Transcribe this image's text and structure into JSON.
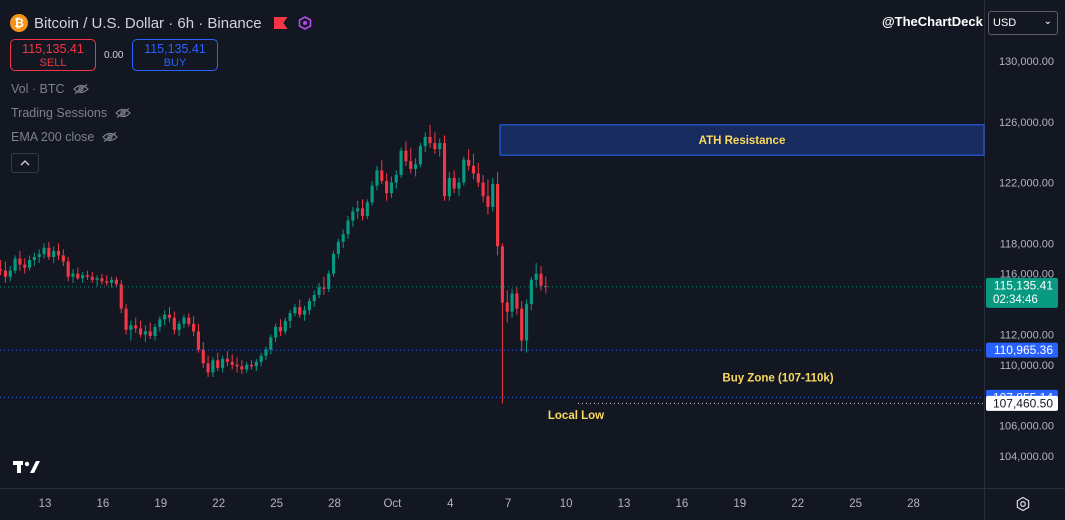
{
  "header": {
    "title": "Bitcoin / U.S. Dollar · 6h · Binance",
    "coin_symbol": "₿",
    "handle": "@TheChartDeck",
    "currency": "USD"
  },
  "trade": {
    "sell_price": "115,135.41",
    "sell_label": "SELL",
    "spread": "0.00",
    "buy_price": "115,135.41",
    "buy_label": "BUY"
  },
  "indicators": [
    "Vol · BTC",
    "Trading Sessions",
    "EMA 200 close"
  ],
  "colors": {
    "up": "#089981",
    "down": "#f23645",
    "bg": "#131722",
    "zone": "#2962ff",
    "annot": "#f9d95f"
  },
  "chart_data": {
    "type": "candlestick",
    "title": "Bitcoin / U.S. Dollar · 6h · Binance",
    "ylim": [
      102800,
      131500
    ],
    "y_ticks": [
      "130,000.00",
      "126,000.00",
      "122,000.00",
      "118,000.00",
      "116,000.00",
      "112,000.00",
      "110,000.00",
      "106,000.00",
      "104,000.00"
    ],
    "x_ticks": [
      "13",
      "16",
      "19",
      "22",
      "25",
      "28",
      "Oct",
      "4",
      "7",
      "10",
      "13",
      "16",
      "19",
      "22",
      "25",
      "28"
    ],
    "x_domain": {
      "first_tick_day": "Sep 13",
      "candles_per_day": 4
    },
    "price_levels": [
      {
        "label": "115,135.41",
        "sublabel": "02:34:46",
        "value": 115135.41,
        "style": "last"
      },
      {
        "label": "110,965.36",
        "value": 110965.36,
        "style": "blue"
      },
      {
        "label": "107,855.14",
        "value": 107855.14,
        "style": "blue"
      },
      {
        "label": "107,460.50",
        "value": 107460.5,
        "style": "white"
      }
    ],
    "annotations": [
      {
        "text": "ATH Resistance",
        "kind": "zone",
        "from_candle": 2,
        "y_range": [
          123800,
          125800
        ]
      },
      {
        "text": "Buy Zone (107-110k)",
        "kind": "label",
        "x_candle": 60,
        "y": 109100
      },
      {
        "text": "Local Low",
        "kind": "label",
        "x_candle": 0,
        "y": 106700
      }
    ],
    "candles": [
      [
        114000,
        114600,
        113400,
        114100
      ],
      [
        114100,
        114800,
        113500,
        113900
      ],
      [
        113900,
        114700,
        113600,
        114600
      ],
      [
        114600,
        115100,
        114200,
        114900
      ],
      [
        114900,
        115400,
        114600,
        115300
      ],
      [
        115300,
        115700,
        114700,
        115000
      ],
      [
        115000,
        115500,
        114600,
        115200
      ],
      [
        115200,
        115900,
        115000,
        115600
      ],
      [
        115600,
        116200,
        115300,
        115900
      ],
      [
        115900,
        116100,
        115200,
        115400
      ],
      [
        115400,
        115800,
        114900,
        115600
      ],
      [
        115600,
        116000,
        115200,
        115500
      ],
      [
        115500,
        116000,
        115100,
        115800
      ],
      [
        115800,
        116300,
        115400,
        115900
      ],
      [
        115900,
        116200,
        115300,
        115500
      ],
      [
        115500,
        115900,
        114900,
        115100
      ],
      [
        115100,
        115700,
        114900,
        115600
      ],
      [
        115600,
        116100,
        115300,
        116000
      ],
      [
        116000,
        116700,
        115700,
        116400
      ],
      [
        116400,
        116900,
        115800,
        116200
      ],
      [
        116200,
        116700,
        115600,
        115800
      ],
      [
        115800,
        116300,
        115400,
        116000
      ],
      [
        116000,
        116500,
        115300,
        115500
      ],
      [
        115500,
        116000,
        114600,
        114900
      ],
      [
        114900,
        115600,
        114600,
        115400
      ],
      [
        115400,
        116400,
        115200,
        116300
      ],
      [
        116300,
        116900,
        115900,
        116200
      ],
      [
        116200,
        116800,
        115400,
        115800
      ],
      [
        115800,
        116500,
        115500,
        116200
      ],
      [
        116200,
        117200,
        116000,
        117000
      ],
      [
        117000,
        117500,
        116200,
        116600
      ],
      [
        116600,
        117000,
        116000,
        116400
      ],
      [
        116400,
        117200,
        116200,
        116900
      ],
      [
        116900,
        117400,
        116500,
        117100
      ],
      [
        117100,
        117600,
        116700,
        117300
      ],
      [
        117300,
        118000,
        117000,
        117700
      ],
      [
        117700,
        118100,
        116900,
        117100
      ],
      [
        117100,
        117800,
        116700,
        117500
      ],
      [
        117500,
        118000,
        116900,
        117200
      ],
      [
        117200,
        117600,
        116500,
        116800
      ],
      [
        116800,
        117100,
        115500,
        115800
      ],
      [
        115800,
        116300,
        115400,
        116000
      ],
      [
        116000,
        116400,
        115600,
        115700
      ],
      [
        115700,
        116100,
        115400,
        115900
      ],
      [
        115900,
        116200,
        115600,
        115800
      ],
      [
        115800,
        116100,
        115400,
        115600
      ],
      [
        115600,
        115900,
        115200,
        115700
      ],
      [
        115700,
        116000,
        115300,
        115500
      ],
      [
        115500,
        115900,
        115200,
        115400
      ],
      [
        115400,
        115800,
        115100,
        115600
      ],
      [
        115600,
        115800,
        115100,
        115300
      ],
      [
        115300,
        115600,
        113400,
        113700
      ],
      [
        113700,
        114000,
        112000,
        112300
      ],
      [
        112300,
        112900,
        111600,
        112600
      ],
      [
        112600,
        113100,
        112100,
        112400
      ],
      [
        112400,
        112900,
        111800,
        112000
      ],
      [
        112000,
        112600,
        111500,
        112200
      ],
      [
        112200,
        112800,
        111700,
        111900
      ],
      [
        111900,
        112700,
        111600,
        112500
      ],
      [
        112500,
        113200,
        112200,
        113000
      ],
      [
        113000,
        113600,
        112600,
        113300
      ],
      [
        113300,
        113800,
        112800,
        113100
      ],
      [
        113100,
        113500,
        112000,
        112300
      ],
      [
        112300,
        112900,
        111900,
        112700
      ],
      [
        112700,
        113300,
        112400,
        113100
      ],
      [
        113100,
        113400,
        112500,
        112700
      ],
      [
        112700,
        113200,
        111900,
        112200
      ],
      [
        112200,
        112700,
        110800,
        111000
      ],
      [
        111000,
        111500,
        109800,
        110100
      ],
      [
        110100,
        110600,
        109200,
        109500
      ],
      [
        109500,
        110500,
        109200,
        110300
      ],
      [
        110300,
        110800,
        109600,
        109800
      ],
      [
        109800,
        110600,
        109500,
        110400
      ],
      [
        110400,
        110900,
        109900,
        110200
      ],
      [
        110200,
        110700,
        109700,
        110000
      ],
      [
        110000,
        110500,
        109500,
        109900
      ],
      [
        109900,
        110300,
        109400,
        109700
      ],
      [
        109700,
        110200,
        109500,
        110000
      ],
      [
        110000,
        110300,
        109700,
        109900
      ],
      [
        109900,
        110400,
        109600,
        110200
      ],
      [
        110200,
        110800,
        109900,
        110600
      ],
      [
        110600,
        111200,
        110300,
        111000
      ],
      [
        111000,
        112000,
        110700,
        111800
      ],
      [
        111800,
        112700,
        111500,
        112500
      ],
      [
        112500,
        113000,
        111900,
        112200
      ],
      [
        112200,
        113100,
        112000,
        112900
      ],
      [
        112900,
        113600,
        112400,
        113400
      ],
      [
        113400,
        114000,
        113200,
        113800
      ],
      [
        113800,
        114300,
        113100,
        113300
      ],
      [
        113300,
        113900,
        112900,
        113600
      ],
      [
        113600,
        114400,
        113300,
        114200
      ],
      [
        114200,
        114900,
        113800,
        114600
      ],
      [
        114600,
        115400,
        114400,
        115100
      ],
      [
        115100,
        115800,
        114600,
        115000
      ],
      [
        115000,
        116200,
        114800,
        116000
      ],
      [
        116000,
        117500,
        115800,
        117300
      ],
      [
        117300,
        118300,
        117000,
        118100
      ],
      [
        118100,
        118900,
        117700,
        118600
      ],
      [
        118600,
        119800,
        118300,
        119500
      ],
      [
        119500,
        120400,
        119100,
        120100
      ],
      [
        120100,
        120800,
        119600,
        120300
      ],
      [
        120300,
        120900,
        119500,
        119800
      ],
      [
        119800,
        120900,
        119600,
        120700
      ],
      [
        120700,
        122100,
        120500,
        121800
      ],
      [
        121800,
        123100,
        121500,
        122800
      ],
      [
        122800,
        123500,
        121900,
        122100
      ],
      [
        122100,
        122600,
        120800,
        121300
      ],
      [
        121300,
        122400,
        121000,
        122000
      ],
      [
        122000,
        122800,
        121600,
        122500
      ],
      [
        122500,
        124300,
        122300,
        124100
      ],
      [
        124100,
        124700,
        123100,
        123400
      ],
      [
        123400,
        124300,
        122600,
        122900
      ],
      [
        122900,
        123600,
        122400,
        123200
      ],
      [
        123200,
        124600,
        123000,
        124400
      ],
      [
        124400,
        125300,
        124000,
        125000
      ],
      [
        125000,
        125800,
        124300,
        124600
      ],
      [
        124600,
        125300,
        123900,
        124200
      ],
      [
        124200,
        124900,
        123700,
        124600
      ],
      [
        124600,
        125100,
        120800,
        121100
      ],
      [
        121100,
        122700,
        120800,
        122300
      ],
      [
        122300,
        122800,
        121300,
        121600
      ],
      [
        121600,
        122300,
        121100,
        122000
      ],
      [
        122000,
        123700,
        121800,
        123500
      ],
      [
        123500,
        124200,
        122800,
        123100
      ],
      [
        123100,
        123900,
        122200,
        122600
      ],
      [
        122600,
        123300,
        121700,
        122000
      ],
      [
        122000,
        122500,
        120700,
        121100
      ],
      [
        121100,
        122200,
        119900,
        120400
      ],
      [
        120400,
        122300,
        120100,
        121900
      ],
      [
        121900,
        122700,
        117200,
        117800
      ],
      [
        117800,
        118000,
        107460,
        114100
      ],
      [
        114100,
        114900,
        112800,
        113500
      ],
      [
        113500,
        115000,
        113100,
        114700
      ],
      [
        114700,
        115100,
        113300,
        113700
      ],
      [
        113700,
        114200,
        110900,
        111600
      ],
      [
        111600,
        114300,
        110800,
        114000
      ],
      [
        114000,
        115800,
        113600,
        115600
      ],
      [
        115600,
        116700,
        115100,
        116000
      ],
      [
        116000,
        116500,
        114900,
        115200
      ],
      [
        115200,
        115800,
        114700,
        115135
      ]
    ]
  }
}
